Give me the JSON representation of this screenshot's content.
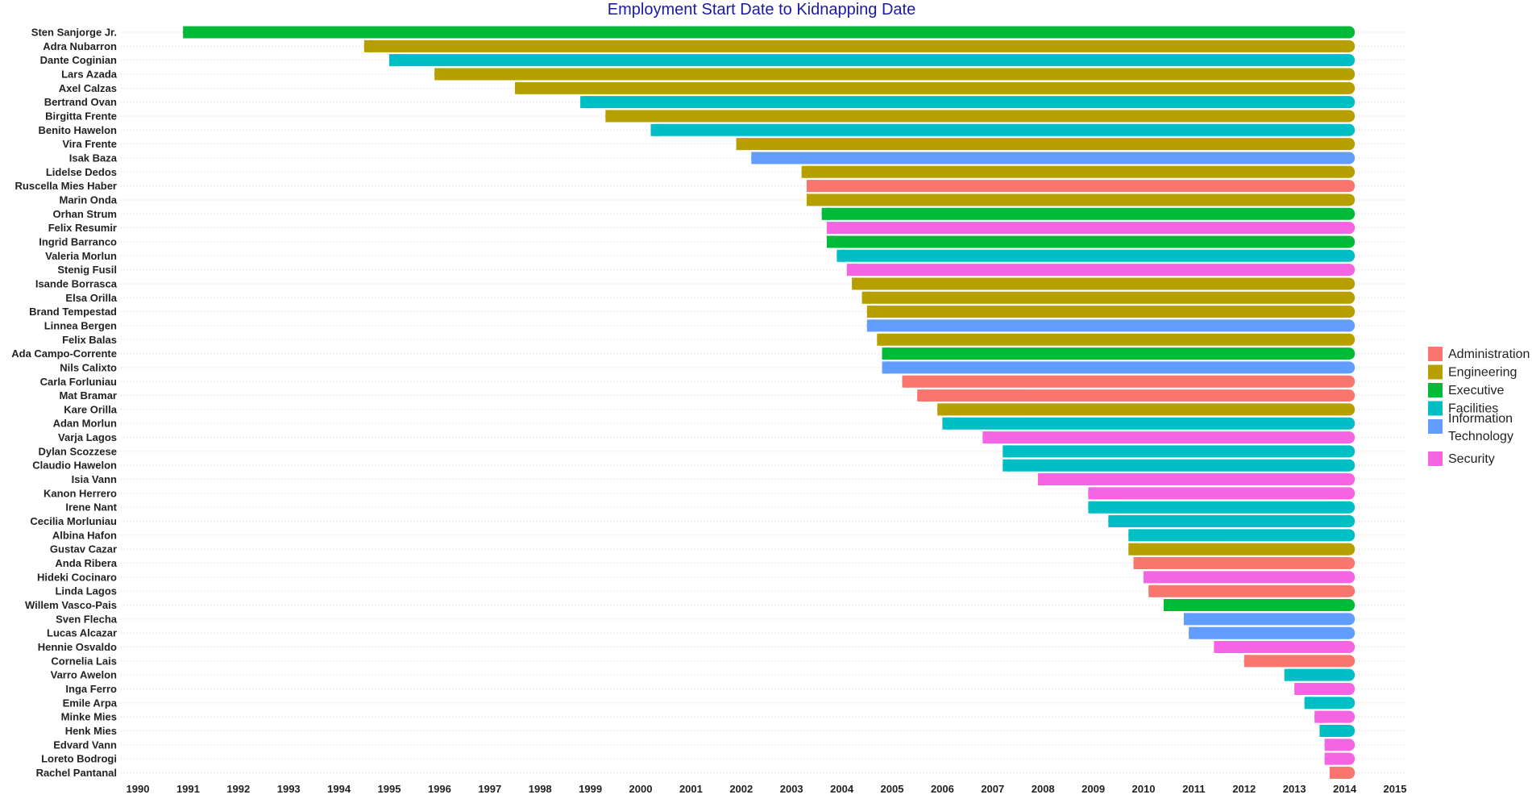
{
  "chart_data": {
    "type": "bar",
    "orientation": "horizontal",
    "title": "Employment Start Date to Kidnapping Date",
    "xlabel": "",
    "ylabel": "",
    "xlim": [
      1990,
      2015
    ],
    "x_ticks": [
      "1990",
      "1991",
      "1992",
      "1993",
      "1994",
      "1995",
      "1996",
      "1997",
      "1998",
      "1999",
      "2000",
      "2001",
      "2002",
      "2003",
      "2004",
      "2005",
      "2006",
      "2007",
      "2008",
      "2009",
      "2010",
      "2011",
      "2012",
      "2013",
      "2014",
      "2015"
    ],
    "end_year": 2014.2,
    "grid": "horizontal dotted",
    "legend_position": "right",
    "departments": [
      {
        "name": "Administration",
        "color": "#F8766D"
      },
      {
        "name": "Engineering",
        "color": "#B79F00"
      },
      {
        "name": "Executive",
        "color": "#00BA38"
      },
      {
        "name": "Facilities",
        "color": "#00BFC4"
      },
      {
        "name": "Information Technology",
        "label_lines": [
          "Information",
          "Technology"
        ],
        "color": "#619CFF"
      },
      {
        "name": "Security",
        "color": "#F564E3"
      }
    ],
    "employees": [
      {
        "name": "Sten Sanjorge Jr.",
        "start": 1990.9,
        "department": "Executive"
      },
      {
        "name": "Adra Nubarron",
        "start": 1994.5,
        "department": "Engineering"
      },
      {
        "name": "Dante Coginian",
        "start": 1995.0,
        "department": "Facilities"
      },
      {
        "name": "Lars Azada",
        "start": 1995.9,
        "department": "Engineering"
      },
      {
        "name": "Axel Calzas",
        "start": 1997.5,
        "department": "Engineering"
      },
      {
        "name": "Bertrand Ovan",
        "start": 1998.8,
        "department": "Facilities"
      },
      {
        "name": "Birgitta Frente",
        "start": 1999.3,
        "department": "Engineering"
      },
      {
        "name": "Benito Hawelon",
        "start": 2000.2,
        "department": "Facilities"
      },
      {
        "name": "Vira Frente",
        "start": 2001.9,
        "department": "Engineering"
      },
      {
        "name": "Isak Baza",
        "start": 2002.2,
        "department": "Information Technology"
      },
      {
        "name": "Lidelse Dedos",
        "start": 2003.2,
        "department": "Engineering"
      },
      {
        "name": "Ruscella Mies Haber",
        "start": 2003.3,
        "department": "Administration"
      },
      {
        "name": "Marin Onda",
        "start": 2003.3,
        "department": "Engineering"
      },
      {
        "name": "Orhan Strum",
        "start": 2003.6,
        "department": "Executive"
      },
      {
        "name": "Felix Resumir",
        "start": 2003.7,
        "department": "Security"
      },
      {
        "name": "Ingrid Barranco",
        "start": 2003.7,
        "department": "Executive"
      },
      {
        "name": "Valeria Morlun",
        "start": 2003.9,
        "department": "Facilities"
      },
      {
        "name": "Stenig Fusil",
        "start": 2004.1,
        "department": "Security"
      },
      {
        "name": "Isande Borrasca",
        "start": 2004.2,
        "department": "Engineering"
      },
      {
        "name": "Elsa Orilla",
        "start": 2004.4,
        "department": "Engineering"
      },
      {
        "name": "Brand Tempestad",
        "start": 2004.5,
        "department": "Engineering"
      },
      {
        "name": "Linnea Bergen",
        "start": 2004.5,
        "department": "Information Technology"
      },
      {
        "name": "Felix Balas",
        "start": 2004.7,
        "department": "Engineering"
      },
      {
        "name": "Ada Campo-Corrente",
        "start": 2004.8,
        "department": "Executive"
      },
      {
        "name": "Nils Calixto",
        "start": 2004.8,
        "department": "Information Technology"
      },
      {
        "name": "Carla Forluniau",
        "start": 2005.2,
        "department": "Administration"
      },
      {
        "name": "Mat Bramar",
        "start": 2005.5,
        "department": "Administration"
      },
      {
        "name": "Kare Orilla",
        "start": 2005.9,
        "department": "Engineering"
      },
      {
        "name": "Adan Morlun",
        "start": 2006.0,
        "department": "Facilities"
      },
      {
        "name": "Varja Lagos",
        "start": 2006.8,
        "department": "Security"
      },
      {
        "name": "Dylan Scozzese",
        "start": 2007.2,
        "department": "Facilities"
      },
      {
        "name": "Claudio Hawelon",
        "start": 2007.2,
        "department": "Facilities"
      },
      {
        "name": "Isia Vann",
        "start": 2007.9,
        "department": "Security"
      },
      {
        "name": "Kanon Herrero",
        "start": 2008.9,
        "department": "Security"
      },
      {
        "name": "Irene Nant",
        "start": 2008.9,
        "department": "Facilities"
      },
      {
        "name": "Cecilia Morluniau",
        "start": 2009.3,
        "department": "Facilities"
      },
      {
        "name": "Albina Hafon",
        "start": 2009.7,
        "department": "Facilities"
      },
      {
        "name": "Gustav Cazar",
        "start": 2009.7,
        "department": "Engineering"
      },
      {
        "name": "Anda Ribera",
        "start": 2009.8,
        "department": "Administration"
      },
      {
        "name": "Hideki Cocinaro",
        "start": 2010.0,
        "department": "Security"
      },
      {
        "name": "Linda Lagos",
        "start": 2010.1,
        "department": "Administration"
      },
      {
        "name": "Willem Vasco-Pais",
        "start": 2010.4,
        "department": "Executive"
      },
      {
        "name": "Sven Flecha",
        "start": 2010.8,
        "department": "Information Technology"
      },
      {
        "name": "Lucas Alcazar",
        "start": 2010.9,
        "department": "Information Technology"
      },
      {
        "name": "Hennie Osvaldo",
        "start": 2011.4,
        "department": "Security"
      },
      {
        "name": "Cornelia Lais",
        "start": 2012.0,
        "department": "Administration"
      },
      {
        "name": "Varro Awelon",
        "start": 2012.8,
        "department": "Facilities"
      },
      {
        "name": "Inga Ferro",
        "start": 2013.0,
        "department": "Security"
      },
      {
        "name": "Emile Arpa",
        "start": 2013.2,
        "department": "Facilities"
      },
      {
        "name": "Minke Mies",
        "start": 2013.4,
        "department": "Security"
      },
      {
        "name": "Henk Mies",
        "start": 2013.5,
        "department": "Facilities"
      },
      {
        "name": "Edvard Vann",
        "start": 2013.6,
        "department": "Security"
      },
      {
        "name": "Loreto Bodrogi",
        "start": 2013.6,
        "department": "Security"
      },
      {
        "name": "Rachel Pantanal",
        "start": 2013.7,
        "department": "Administration"
      }
    ]
  }
}
